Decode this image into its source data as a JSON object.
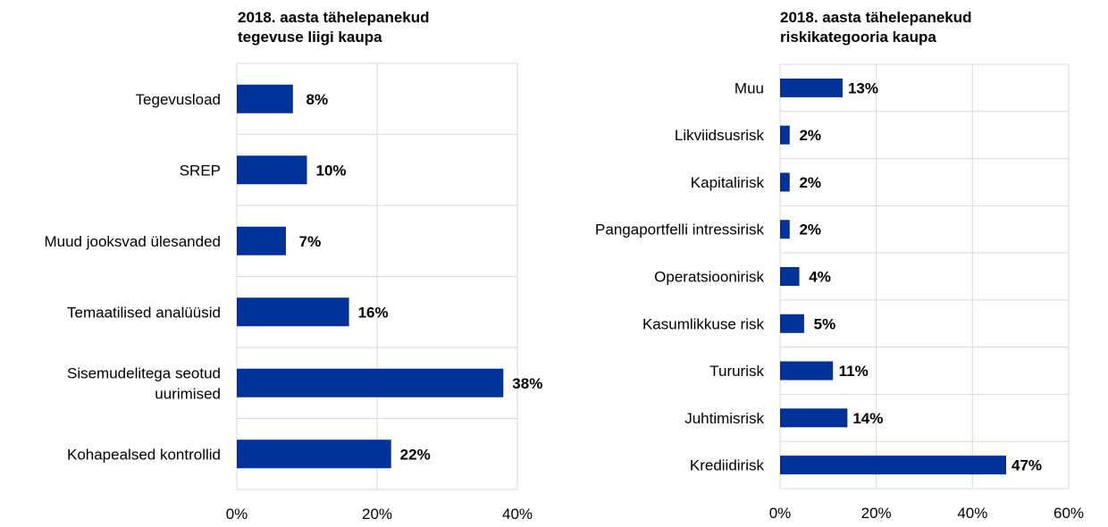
{
  "chart_data": [
    {
      "type": "bar",
      "orientation": "horizontal",
      "title": "2018. aasta tähelepanekud\ntegevuse liigi kaupa",
      "categories": [
        "Tegevusload",
        "SREP",
        "Muud jooksvad ülesanded",
        "Temaatilised analüüsid",
        "Sisemudelitega seotud uurimised",
        "Kohapealsed kontrollid"
      ],
      "category_lines": [
        [
          "Tegevusload"
        ],
        [
          "SREP"
        ],
        [
          "Muud jooksvad ülesanded"
        ],
        [
          "Temaatilised analüüsid"
        ],
        [
          "Sisemudelitega seotud",
          "uurimised"
        ],
        [
          "Kohapealsed kontrollid"
        ]
      ],
      "values": [
        8,
        10,
        7,
        16,
        38,
        22
      ],
      "value_labels": [
        "8%",
        "10%",
        "7%",
        "16%",
        "38%",
        "22%"
      ],
      "xlim": [
        0,
        40
      ],
      "xticks": [
        0,
        20,
        40
      ],
      "xtick_labels": [
        "0%",
        "20%",
        "40%"
      ],
      "grid": true,
      "bar_color": "#003299"
    },
    {
      "type": "bar",
      "orientation": "horizontal",
      "title": "2018. aasta tähelepanekud\nriskikategooria kaupa",
      "categories": [
        "Muu",
        "Likviidsusrisk",
        "Kapitalirisk",
        "Pangaportfelli intressirisk",
        "Operatsioonirisk",
        "Kasumlikkuse risk",
        "Tururisk",
        "Juhtimisrisk",
        "Krediidirisk"
      ],
      "category_lines": [
        [
          "Muu"
        ],
        [
          "Likviidsusrisk"
        ],
        [
          "Kapitalirisk"
        ],
        [
          "Pangaportfelli intressirisk"
        ],
        [
          "Operatsioonirisk"
        ],
        [
          "Kasumlikkuse risk"
        ],
        [
          "Tururisk"
        ],
        [
          "Juhtimisrisk"
        ],
        [
          "Krediidirisk"
        ]
      ],
      "values": [
        13,
        2,
        2,
        2,
        4,
        5,
        11,
        14,
        47
      ],
      "value_labels": [
        "13%",
        "2%",
        "2%",
        "2%",
        "4%",
        "5%",
        "11%",
        "14%",
        "47%"
      ],
      "xlim": [
        0,
        60
      ],
      "xticks": [
        0,
        20,
        40,
        60
      ],
      "xtick_labels": [
        "0%",
        "20%",
        "40%",
        "60%"
      ],
      "grid": true,
      "bar_color": "#003299"
    }
  ]
}
